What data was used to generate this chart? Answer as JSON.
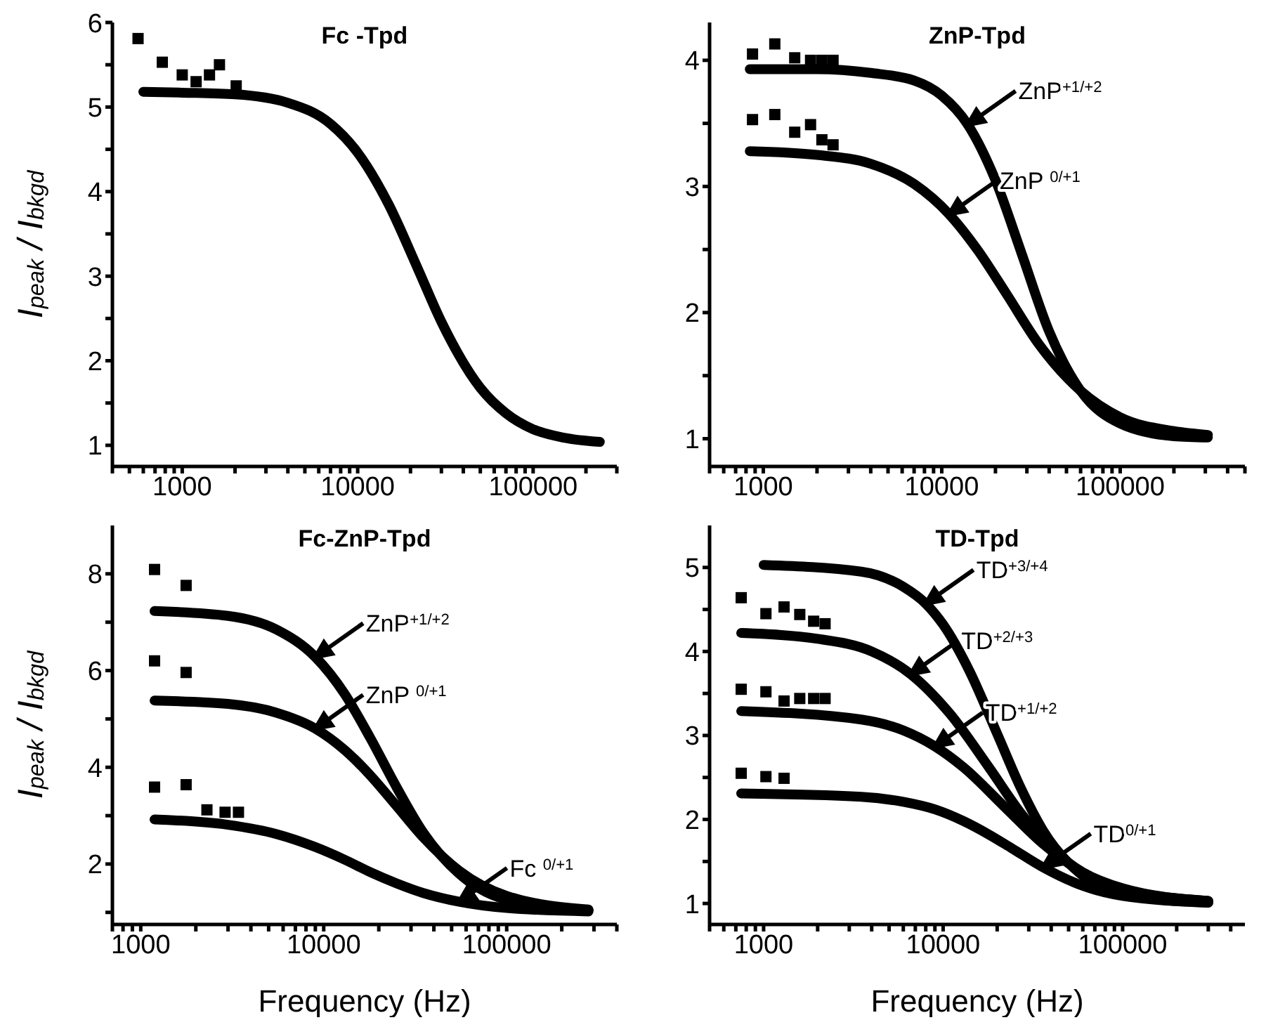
{
  "chart_data": [
    {
      "type": "line",
      "title": "Fc -Tpd",
      "ylabel": "I$_{peak}$ / I$_{bkgd}$",
      "log": "x",
      "xlim": [
        400,
        300000
      ],
      "ylim": [
        0.75,
        6
      ],
      "xticks": [
        {
          "value": 400,
          "label": null
        },
        {
          "value": 500,
          "label": null
        },
        {
          "value": 600,
          "label": null
        },
        {
          "value": 700,
          "label": null
        },
        {
          "value": 800,
          "label": null
        },
        {
          "value": 900,
          "label": null
        },
        1000,
        {
          "value": 2000,
          "label": null
        },
        {
          "value": 3000,
          "label": null
        },
        {
          "value": 4000,
          "label": null
        },
        {
          "value": 5000,
          "label": null
        },
        {
          "value": 6000,
          "label": null
        },
        {
          "value": 7000,
          "label": null
        },
        {
          "value": 8000,
          "label": null
        },
        {
          "value": 9000,
          "label": null
        },
        10000,
        {
          "value": 20000,
          "label": null
        },
        {
          "value": 30000,
          "label": null
        },
        {
          "value": 40000,
          "label": null
        },
        {
          "value": 50000,
          "label": null
        },
        {
          "value": 60000,
          "label": null
        },
        {
          "value": 70000,
          "label": null
        },
        {
          "value": 80000,
          "label": null
        },
        {
          "value": 90000,
          "label": null
        },
        100000,
        {
          "value": 200000,
          "label": null
        },
        {
          "value": 300000,
          "label": null
        }
      ],
      "yticks": [
        1,
        {
          "value": 1.5,
          "label": null
        },
        2,
        {
          "value": 2.5,
          "label": null
        },
        3,
        {
          "value": 3.5,
          "label": null
        },
        4,
        {
          "value": 4.5,
          "label": null
        },
        5,
        {
          "value": 5.5,
          "label": null
        },
        6
      ],
      "series": [
        {
          "color": "#000000",
          "marker": "none",
          "x": [
            600,
            1000,
            2000,
            4000,
            7000,
            10000,
            15000,
            22000,
            30000,
            50000,
            70000,
            100000,
            150000,
            240000
          ],
          "values": [
            5.18,
            5.17,
            5.15,
            5.05,
            4.8,
            4.46,
            3.85,
            3.09,
            2.46,
            1.68,
            1.38,
            1.19,
            1.09,
            1.04
          ]
        },
        {
          "type": "scatter",
          "color": "#000000",
          "marker": "square",
          "x": [
            560,
            770,
            1000,
            1200,
            1430,
            1630,
            2030
          ],
          "values": [
            5.81,
            5.53,
            5.38,
            5.3,
            5.38,
            5.5,
            5.25
          ]
        }
      ]
    },
    {
      "type": "line",
      "title": "ZnP-Tpd",
      "log": "x",
      "xlim": [
        500,
        500000
      ],
      "ylim": [
        0.78,
        4.3
      ],
      "xticks": [
        {
          "value": 500,
          "label": null
        },
        {
          "value": 600,
          "label": null
        },
        {
          "value": 700,
          "label": null
        },
        {
          "value": 800,
          "label": null
        },
        {
          "value": 900,
          "label": null
        },
        1000,
        {
          "value": 2000,
          "label": null
        },
        {
          "value": 3000,
          "label": null
        },
        {
          "value": 4000,
          "label": null
        },
        {
          "value": 5000,
          "label": null
        },
        {
          "value": 6000,
          "label": null
        },
        {
          "value": 7000,
          "label": null
        },
        {
          "value": 8000,
          "label": null
        },
        {
          "value": 9000,
          "label": null
        },
        10000,
        {
          "value": 20000,
          "label": null
        },
        {
          "value": 30000,
          "label": null
        },
        {
          "value": 40000,
          "label": null
        },
        {
          "value": 50000,
          "label": null
        },
        {
          "value": 60000,
          "label": null
        },
        {
          "value": 70000,
          "label": null
        },
        {
          "value": 80000,
          "label": null
        },
        {
          "value": 90000,
          "label": null
        },
        100000,
        {
          "value": 200000,
          "label": null
        },
        {
          "value": 300000,
          "label": null
        },
        {
          "value": 400000,
          "label": null
        },
        {
          "value": 500000,
          "label": null
        }
      ],
      "yticks": [
        1,
        {
          "value": 1.5,
          "label": null
        },
        2,
        {
          "value": 2.5,
          "label": null
        },
        3,
        {
          "value": 3.5,
          "label": null
        },
        4
      ],
      "annotations": [
        {
          "text": "ZnP$^{+1/+2}$",
          "x": 14000,
          "y": 3.49
        },
        {
          "text": "ZnP $^{0/+1}$",
          "x": 11000,
          "y": 2.78
        }
      ],
      "series": [
        {
          "color": "#000000",
          "marker": "none",
          "x": [
            840,
            2000,
            4000,
            7000,
            10000,
            14000,
            20000,
            28000,
            40000,
            60000,
            100000,
            200000,
            310000
          ],
          "values": [
            3.93,
            3.93,
            3.9,
            3.84,
            3.72,
            3.49,
            3.05,
            2.47,
            1.85,
            1.38,
            1.12,
            1.02,
            1.01
          ]
        },
        {
          "color": "#000000",
          "marker": "none",
          "x": [
            840,
            2000,
            4000,
            7000,
            11000,
            16000,
            23000,
            35000,
            60000,
            100000,
            200000,
            310000
          ],
          "values": [
            3.28,
            3.25,
            3.18,
            3.02,
            2.78,
            2.49,
            2.15,
            1.75,
            1.38,
            1.17,
            1.06,
            1.03
          ]
        },
        {
          "type": "scatter",
          "color": "#000000",
          "marker": "square",
          "x": [
            870,
            1160,
            1500,
            1840,
            2130,
            2460
          ],
          "values": [
            4.05,
            4.13,
            4.02,
            4.0,
            4.0,
            4.0
          ]
        },
        {
          "type": "scatter",
          "color": "#000000",
          "marker": "square",
          "x": [
            870,
            1160,
            1500,
            1840,
            2130,
            2460
          ],
          "values": [
            3.53,
            3.57,
            3.43,
            3.49,
            3.37,
            3.33
          ]
        }
      ]
    },
    {
      "type": "line",
      "title": "Fc-ZnP-Tpd",
      "xlabel": "Frequency (Hz)",
      "ylabel": "I$_{peak}$ / I$_{bkgd}$",
      "log": "x",
      "xlim": [
        700,
        400000
      ],
      "ylim": [
        0.75,
        9
      ],
      "xticks": [
        {
          "value": 700,
          "label": null
        },
        {
          "value": 800,
          "label": null
        },
        {
          "value": 900,
          "label": null
        },
        1000,
        {
          "value": 2000,
          "label": null
        },
        {
          "value": 3000,
          "label": null
        },
        {
          "value": 4000,
          "label": null
        },
        {
          "value": 5000,
          "label": null
        },
        {
          "value": 6000,
          "label": null
        },
        {
          "value": 7000,
          "label": null
        },
        {
          "value": 8000,
          "label": null
        },
        {
          "value": 9000,
          "label": null
        },
        10000,
        {
          "value": 20000,
          "label": null
        },
        {
          "value": 30000,
          "label": null
        },
        {
          "value": 40000,
          "label": null
        },
        {
          "value": 50000,
          "label": null
        },
        {
          "value": 60000,
          "label": null
        },
        {
          "value": 70000,
          "label": null
        },
        {
          "value": 80000,
          "label": null
        },
        {
          "value": 90000,
          "label": null
        },
        100000,
        {
          "value": 200000,
          "label": null
        },
        {
          "value": 300000,
          "label": null
        },
        {
          "value": 400000,
          "label": null
        }
      ],
      "yticks": [
        {
          "value": 1,
          "label": null
        },
        2,
        {
          "value": 3,
          "label": null
        },
        4,
        {
          "value": 5,
          "label": null
        },
        6,
        {
          "value": 7,
          "label": null
        },
        8
      ],
      "annotations": [
        {
          "text": "ZnP$^{+1/+2}$",
          "x": 9000,
          "y": 6.28
        },
        {
          "text": "ZnP $^{0/+1}$",
          "x": 9000,
          "y": 4.8
        },
        {
          "text": "Fc $^{0/+1}$",
          "x": 55000,
          "y": 1.22
        }
      ],
      "series": [
        {
          "color": "#000000",
          "marker": "none",
          "x": [
            1190,
            3000,
            5500,
            9000,
            13000,
            18000,
            25000,
            35000,
            55000,
            100000,
            280000
          ],
          "values": [
            7.23,
            7.13,
            6.85,
            6.28,
            5.52,
            4.6,
            3.59,
            2.65,
            1.8,
            1.26,
            1.04
          ]
        },
        {
          "color": "#000000",
          "marker": "none",
          "x": [
            1190,
            3000,
            5500,
            9000,
            13000,
            18000,
            25000,
            35000,
            55000,
            100000,
            280000
          ],
          "values": [
            5.38,
            5.31,
            5.13,
            4.8,
            4.36,
            3.83,
            3.2,
            2.55,
            1.86,
            1.34,
            1.06
          ]
        },
        {
          "color": "#000000",
          "marker": "none",
          "x": [
            1190,
            3000,
            5500,
            9000,
            13000,
            18000,
            25000,
            35000,
            55000,
            100000,
            280000
          ],
          "values": [
            2.92,
            2.81,
            2.62,
            2.35,
            2.09,
            1.83,
            1.6,
            1.4,
            1.22,
            1.09,
            1.02
          ]
        },
        {
          "type": "scatter",
          "color": "#000000",
          "marker": "square",
          "x": [
            1190,
            1770,
            1190,
            1770,
            1190,
            1770,
            2300,
            2890,
            3420
          ],
          "values": [
            8.09,
            7.76,
            6.2,
            5.96,
            3.59,
            3.64,
            3.12,
            3.07,
            3.07
          ]
        }
      ]
    },
    {
      "type": "line",
      "title": "TD-Tpd",
      "xlabel": "Frequency (Hz)",
      "log": "x",
      "xlim": [
        500,
        480000
      ],
      "ylim": [
        0.75,
        5.5
      ],
      "xticks": [
        {
          "value": 500,
          "label": null
        },
        {
          "value": 600,
          "label": null
        },
        {
          "value": 700,
          "label": null
        },
        {
          "value": 800,
          "label": null
        },
        {
          "value": 900,
          "label": null
        },
        1000,
        {
          "value": 2000,
          "label": null
        },
        {
          "value": 3000,
          "label": null
        },
        {
          "value": 4000,
          "label": null
        },
        {
          "value": 5000,
          "label": null
        },
        {
          "value": 6000,
          "label": null
        },
        {
          "value": 7000,
          "label": null
        },
        {
          "value": 8000,
          "label": null
        },
        {
          "value": 9000,
          "label": null
        },
        10000,
        {
          "value": 20000,
          "label": null
        },
        {
          "value": 30000,
          "label": null
        },
        {
          "value": 40000,
          "label": null
        },
        {
          "value": 50000,
          "label": null
        },
        {
          "value": 60000,
          "label": null
        },
        {
          "value": 70000,
          "label": null
        },
        {
          "value": 80000,
          "label": null
        },
        {
          "value": 90000,
          "label": null
        },
        100000,
        {
          "value": 200000,
          "label": null
        },
        {
          "value": 300000,
          "label": null
        },
        {
          "value": 400000,
          "label": null
        }
      ],
      "yticks": [
        1,
        {
          "value": 1.5,
          "label": null
        },
        2,
        {
          "value": 2.5,
          "label": null
        },
        3,
        {
          "value": 3.5,
          "label": null
        },
        4,
        {
          "value": 4.5,
          "label": null
        },
        5
      ],
      "annotations": [
        {
          "text": "TD$^{+3/+4}$",
          "x": 8000,
          "y": 4.57
        },
        {
          "text": "TD$^{+2/+3}$",
          "x": 6600,
          "y": 3.73
        },
        {
          "text": "TD$^{+1/+2}$",
          "x": 9000,
          "y": 2.87
        },
        {
          "text": "TD$^{0/+1}$",
          "x": 36000,
          "y": 1.43
        }
      ],
      "series": [
        {
          "color": "#000000",
          "marker": "none",
          "x": [
            1000,
            3500,
            6000,
            8000,
            10000,
            14000,
            20000,
            27000,
            36000,
            60000,
            100000,
            300000
          ],
          "values": [
            5.03,
            4.95,
            4.77,
            4.57,
            4.32,
            3.77,
            3.02,
            2.38,
            1.87,
            1.33,
            1.11,
            1.01
          ]
        },
        {
          "color": "#000000",
          "marker": "none",
          "x": [
            750,
            2000,
            4000,
            6600,
            11000,
            18000,
            27000,
            40000,
            60000,
            100000,
            300000
          ],
          "values": [
            4.22,
            4.15,
            4.0,
            3.73,
            3.25,
            2.62,
            2.08,
            1.66,
            1.37,
            1.17,
            1.03
          ]
        },
        {
          "color": "#000000",
          "marker": "none",
          "x": [
            750,
            3500,
            6000,
            9000,
            13000,
            22000,
            36000,
            60000,
            100000,
            300000
          ],
          "values": [
            3.29,
            3.19,
            3.06,
            2.87,
            2.62,
            2.15,
            1.71,
            1.37,
            1.18,
            1.03
          ]
        },
        {
          "color": "#000000",
          "marker": "none",
          "x": [
            750,
            3500,
            6000,
            9000,
            13000,
            18000,
            24000,
            36000,
            60000,
            100000,
            300000
          ],
          "values": [
            2.31,
            2.27,
            2.21,
            2.12,
            1.98,
            1.82,
            1.66,
            1.43,
            1.21,
            1.09,
            1.01
          ]
        },
        {
          "type": "scatter",
          "color": "#000000",
          "marker": "square",
          "x": [
            750,
            1030,
            1300,
            1590,
            1900,
            2200,
            750,
            1030,
            1300,
            1590,
            1900,
            2200,
            750,
            1030,
            1300
          ],
          "values": [
            4.64,
            4.45,
            4.53,
            4.44,
            4.36,
            4.33,
            3.55,
            3.52,
            3.41,
            3.44,
            3.44,
            3.44,
            2.55,
            2.51,
            2.49
          ]
        }
      ]
    }
  ]
}
